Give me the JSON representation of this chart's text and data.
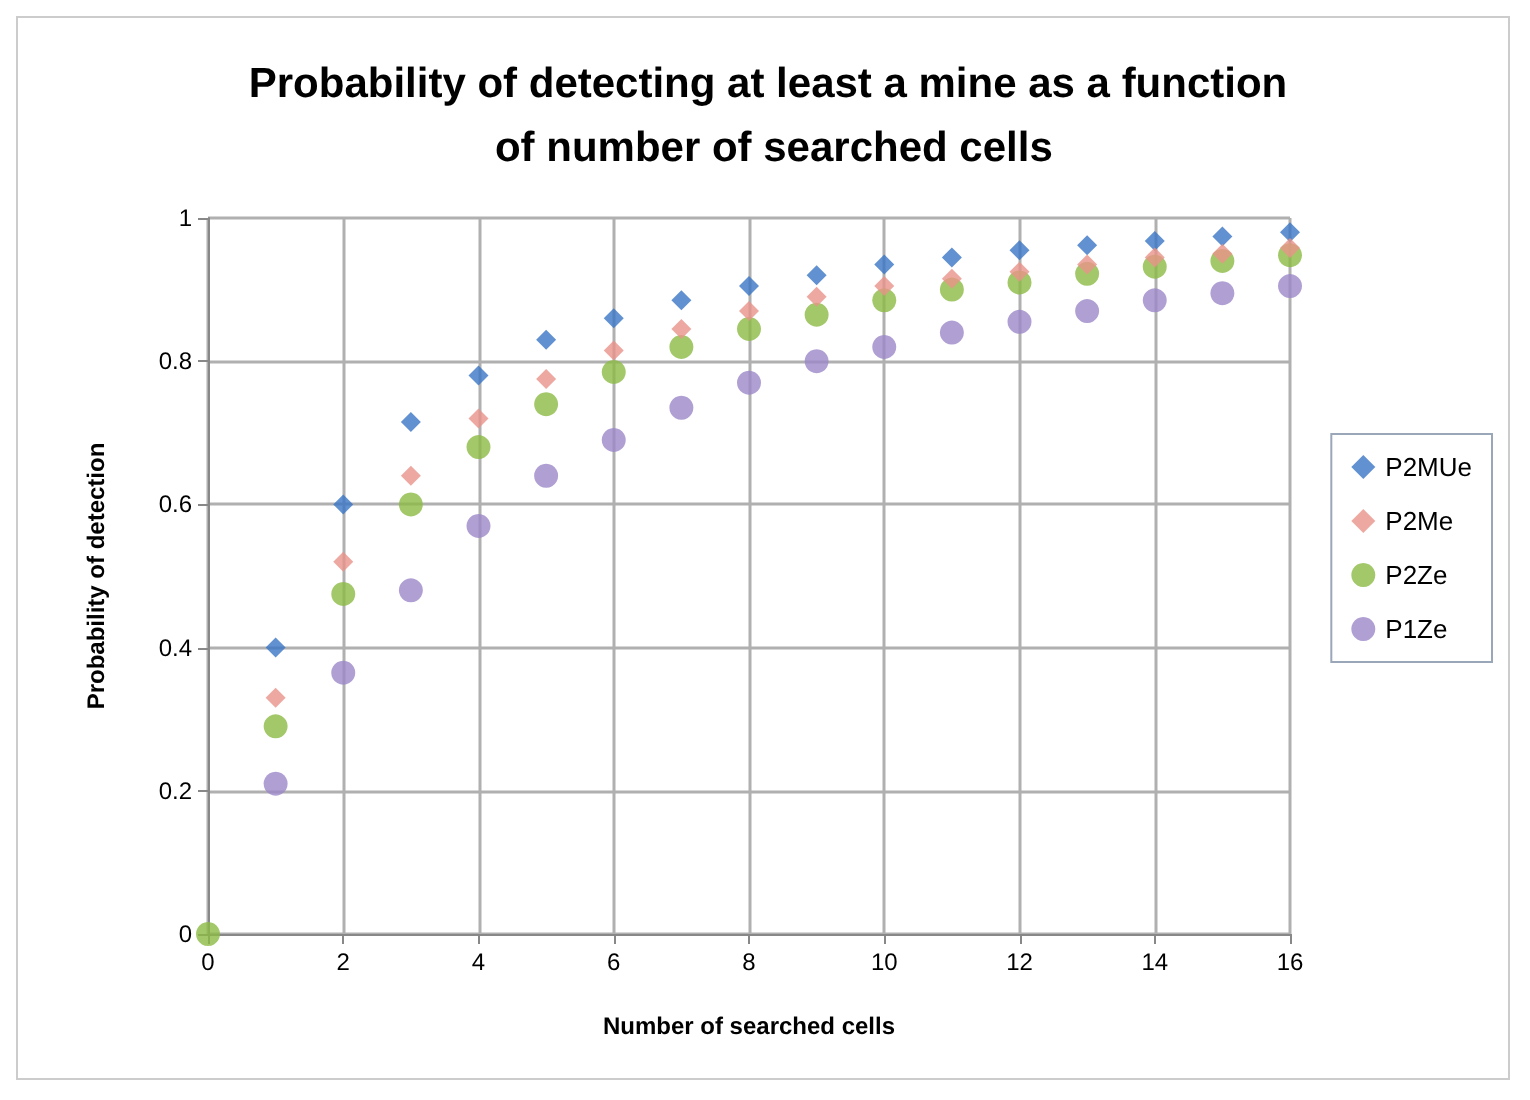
{
  "chart_data": {
    "type": "scatter",
    "title": "Probability of detecting at least a mine as a function of number of searched cells",
    "xlabel": "Number of searched cells",
    "ylabel": "Probability of detection",
    "x": [
      0,
      1,
      2,
      3,
      4,
      5,
      6,
      7,
      8,
      9,
      10,
      11,
      12,
      13,
      14,
      15,
      16
    ],
    "series": [
      {
        "name": "P2MUe",
        "color": "#3a75c4",
        "marker": "diamond",
        "values": [
          null,
          0.4,
          0.6,
          0.715,
          0.78,
          0.83,
          0.86,
          0.885,
          0.905,
          0.92,
          0.935,
          0.945,
          0.955,
          0.962,
          0.968,
          0.974,
          0.98
        ]
      },
      {
        "name": "P2Me",
        "color": "#e8938a",
        "marker": "diamond",
        "values": [
          null,
          0.33,
          0.52,
          0.64,
          0.72,
          0.775,
          0.815,
          0.845,
          0.87,
          0.89,
          0.905,
          0.915,
          0.925,
          0.935,
          0.945,
          0.95,
          0.958
        ]
      },
      {
        "name": "P2Ze",
        "color": "#8cba45",
        "marker": "circle",
        "values": [
          0,
          0.29,
          0.475,
          0.6,
          0.68,
          0.74,
          0.785,
          0.82,
          0.845,
          0.865,
          0.885,
          0.9,
          0.91,
          0.922,
          0.932,
          0.94,
          0.948
        ]
      },
      {
        "name": "P1Ze",
        "color": "#9b87c8",
        "marker": "circle",
        "values": [
          null,
          0.21,
          0.365,
          0.48,
          0.57,
          0.64,
          0.69,
          0.735,
          0.77,
          0.8,
          0.82,
          0.84,
          0.855,
          0.87,
          0.885,
          0.895,
          0.905
        ]
      }
    ],
    "xlim": [
      0,
      16
    ],
    "xticks": [
      0,
      2,
      4,
      6,
      8,
      10,
      12,
      14,
      16
    ],
    "ylim": [
      0,
      1
    ],
    "yticks": [
      0,
      0.2,
      0.4,
      0.6,
      0.8,
      1
    ],
    "grid": true,
    "legend": "right"
  }
}
